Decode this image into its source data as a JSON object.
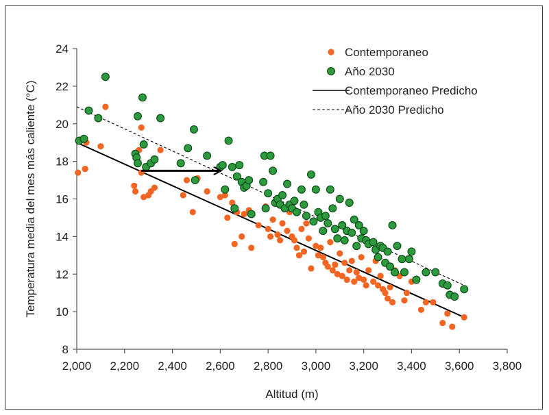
{
  "chart_data": {
    "type": "scatter",
    "title": "",
    "xlabel": "Altitud (m)",
    "ylabel": "Temperatura media del mes más caliente (°C)",
    "xlim": [
      2000,
      3800
    ],
    "ylim": [
      8,
      24
    ],
    "x_ticks": [
      "2,000",
      "2,200",
      "2,400",
      "2,600",
      "2,800",
      "3,000",
      "3,200",
      "3,400",
      "3,600",
      "3,800"
    ],
    "y_ticks": [
      "8",
      "10",
      "12",
      "14",
      "16",
      "18",
      "20",
      "22",
      "24"
    ],
    "grid": false,
    "legend_position": "top-right",
    "colors": {
      "contemporaneo": "#f26522",
      "ano2030": "#2e9a3e",
      "ano2030_edge": "#0d4d1a",
      "line": "#000000"
    },
    "series": [
      {
        "name": "Contemporaneo",
        "kind": "scatter",
        "points": [
          [
            2005,
            17.4
          ],
          [
            2015,
            19.1
          ],
          [
            2035,
            17.6
          ],
          [
            2040,
            19.0
          ],
          [
            2100,
            18.8
          ],
          [
            2120,
            20.9
          ],
          [
            2240,
            16.7
          ],
          [
            2245,
            16.4
          ],
          [
            2260,
            18.6
          ],
          [
            2270,
            19.8
          ],
          [
            2270,
            17.4
          ],
          [
            2280,
            16.1
          ],
          [
            2300,
            16.2
          ],
          [
            2310,
            16.4
          ],
          [
            2325,
            16.6
          ],
          [
            2350,
            18.6
          ],
          [
            2445,
            16.2
          ],
          [
            2460,
            17.0
          ],
          [
            2485,
            15.3
          ],
          [
            2505,
            17.1
          ],
          [
            2545,
            16.4
          ],
          [
            2600,
            16.1
          ],
          [
            2620,
            16.2
          ],
          [
            2630,
            15.0
          ],
          [
            2650,
            15.8
          ],
          [
            2660,
            13.6
          ],
          [
            2670,
            15.3
          ],
          [
            2690,
            14.0
          ],
          [
            2700,
            15.2
          ],
          [
            2720,
            15.4
          ],
          [
            2730,
            13.4
          ],
          [
            2760,
            14.6
          ],
          [
            2790,
            15.6
          ],
          [
            2800,
            14.4
          ],
          [
            2810,
            14.0
          ],
          [
            2820,
            14.9
          ],
          [
            2840,
            14.1
          ],
          [
            2850,
            13.8
          ],
          [
            2860,
            14.7
          ],
          [
            2880,
            14.3
          ],
          [
            2890,
            15.3
          ],
          [
            2900,
            14.0
          ],
          [
            2910,
            13.8
          ],
          [
            2920,
            13.4
          ],
          [
            2930,
            13.0
          ],
          [
            2940,
            14.4
          ],
          [
            2950,
            13.2
          ],
          [
            2960,
            14.7
          ],
          [
            2970,
            13.9
          ],
          [
            2980,
            12.3
          ],
          [
            3000,
            13.5
          ],
          [
            3010,
            13.0
          ],
          [
            3020,
            13.4
          ],
          [
            3030,
            12.9
          ],
          [
            3040,
            12.6
          ],
          [
            3050,
            12.4
          ],
          [
            3060,
            13.7
          ],
          [
            3070,
            12.2
          ],
          [
            3080,
            12.5
          ],
          [
            3090,
            12.0
          ],
          [
            3100,
            13.1
          ],
          [
            3110,
            11.9
          ],
          [
            3120,
            12.6
          ],
          [
            3130,
            11.7
          ],
          [
            3140,
            12.2
          ],
          [
            3150,
            12.7
          ],
          [
            3160,
            11.6
          ],
          [
            3170,
            12.1
          ],
          [
            3180,
            11.8
          ],
          [
            3190,
            12.9
          ],
          [
            3200,
            11.7
          ],
          [
            3210,
            11.4
          ],
          [
            3220,
            12.2
          ],
          [
            3240,
            11.6
          ],
          [
            3250,
            12.7
          ],
          [
            3260,
            11.4
          ],
          [
            3270,
            11.9
          ],
          [
            3280,
            11.2
          ],
          [
            3290,
            11.0
          ],
          [
            3300,
            10.7
          ],
          [
            3310,
            11.3
          ],
          [
            3320,
            10.5
          ],
          [
            3330,
            12.2
          ],
          [
            3350,
            11.9
          ],
          [
            3370,
            10.6
          ],
          [
            3380,
            11.0
          ],
          [
            3400,
            11.6
          ],
          [
            3440,
            10.1
          ],
          [
            3460,
            10.5
          ],
          [
            3490,
            10.5
          ],
          [
            3530,
            9.4
          ],
          [
            3550,
            9.9
          ],
          [
            3570,
            9.2
          ],
          [
            3620,
            9.7
          ]
        ]
      },
      {
        "name": "Año 2030",
        "kind": "scatter",
        "points": [
          [
            2010,
            19.1
          ],
          [
            2030,
            19.2
          ],
          [
            2050,
            20.7
          ],
          [
            2090,
            20.3
          ],
          [
            2120,
            22.5
          ],
          [
            2245,
            18.4
          ],
          [
            2250,
            18.2
          ],
          [
            2255,
            17.9
          ],
          [
            2255,
            20.4
          ],
          [
            2275,
            21.4
          ],
          [
            2280,
            18.9
          ],
          [
            2290,
            17.7
          ],
          [
            2310,
            17.9
          ],
          [
            2325,
            18.1
          ],
          [
            2350,
            20.3
          ],
          [
            2435,
            17.9
          ],
          [
            2465,
            18.7
          ],
          [
            2490,
            19.7
          ],
          [
            2495,
            17.0
          ],
          [
            2545,
            18.3
          ],
          [
            2600,
            17.7
          ],
          [
            2610,
            17.8
          ],
          [
            2620,
            16.5
          ],
          [
            2635,
            19.1
          ],
          [
            2650,
            17.7
          ],
          [
            2660,
            15.5
          ],
          [
            2670,
            17.2
          ],
          [
            2680,
            17.8
          ],
          [
            2690,
            16.9
          ],
          [
            2700,
            16.6
          ],
          [
            2710,
            16.7
          ],
          [
            2720,
            17.0
          ],
          [
            2730,
            15.2
          ],
          [
            2780,
            16.9
          ],
          [
            2785,
            18.3
          ],
          [
            2790,
            15.5
          ],
          [
            2800,
            16.3
          ],
          [
            2810,
            18.3
          ],
          [
            2820,
            17.5
          ],
          [
            2830,
            15.8
          ],
          [
            2840,
            16.0
          ],
          [
            2850,
            15.7
          ],
          [
            2860,
            16.2
          ],
          [
            2870,
            15.5
          ],
          [
            2880,
            16.8
          ],
          [
            2890,
            15.7
          ],
          [
            2900,
            15.5
          ],
          [
            2910,
            15.9
          ],
          [
            2920,
            15.3
          ],
          [
            2940,
            16.5
          ],
          [
            2950,
            15.7
          ],
          [
            2960,
            15.1
          ],
          [
            2980,
            17.3
          ],
          [
            2990,
            14.8
          ],
          [
            3000,
            16.5
          ],
          [
            3010,
            15.3
          ],
          [
            3020,
            15.0
          ],
          [
            3030,
            14.3
          ],
          [
            3040,
            15.1
          ],
          [
            3050,
            14.7
          ],
          [
            3060,
            16.5
          ],
          [
            3070,
            15.5
          ],
          [
            3080,
            14.4
          ],
          [
            3090,
            13.9
          ],
          [
            3100,
            16.0
          ],
          [
            3110,
            14.6
          ],
          [
            3120,
            13.8
          ],
          [
            3130,
            14.3
          ],
          [
            3140,
            15.8
          ],
          [
            3150,
            14.2
          ],
          [
            3160,
            14.9
          ],
          [
            3170,
            13.5
          ],
          [
            3180,
            14.6
          ],
          [
            3190,
            13.9
          ],
          [
            3200,
            14.3
          ],
          [
            3210,
            13.8
          ],
          [
            3220,
            13.6
          ],
          [
            3240,
            13.7
          ],
          [
            3250,
            13.3
          ],
          [
            3260,
            12.9
          ],
          [
            3270,
            13.5
          ],
          [
            3280,
            13.4
          ],
          [
            3290,
            12.6
          ],
          [
            3300,
            13.2
          ],
          [
            3310,
            12.4
          ],
          [
            3320,
            14.6
          ],
          [
            3330,
            12.1
          ],
          [
            3340,
            13.5
          ],
          [
            3360,
            12.8
          ],
          [
            3370,
            12.1
          ],
          [
            3390,
            12.8
          ],
          [
            3400,
            13.2
          ],
          [
            3420,
            11.7
          ],
          [
            3460,
            12.1
          ],
          [
            3500,
            12.1
          ],
          [
            3530,
            11.5
          ],
          [
            3550,
            11.4
          ],
          [
            3560,
            10.9
          ],
          [
            3580,
            10.8
          ],
          [
            3620,
            11.2
          ]
        ]
      },
      {
        "name": "Contemporaneo Predicho",
        "kind": "line",
        "style": "solid",
        "x": [
          2000,
          3620
        ],
        "y": [
          19.0,
          9.7
        ]
      },
      {
        "name": "Año 2030 Predicho",
        "kind": "line",
        "style": "dashed",
        "x": [
          2000,
          3620
        ],
        "y": [
          20.9,
          11.4
        ]
      }
    ],
    "annotations": [
      {
        "type": "arrow",
        "from": [
          2270,
          17.5
        ],
        "to": [
          2600,
          17.5
        ]
      }
    ]
  }
}
